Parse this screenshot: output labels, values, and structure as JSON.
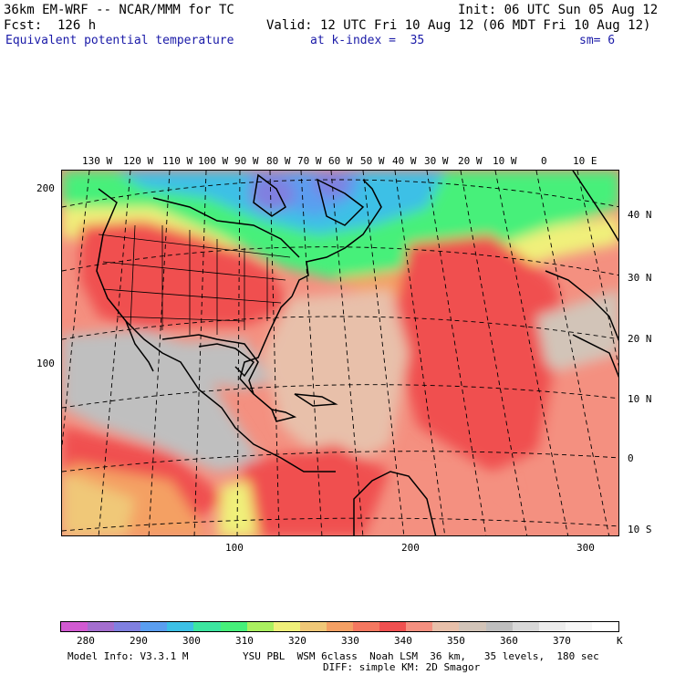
{
  "header": {
    "model": "36km EM-WRF -- NCAR/MMM for TC",
    "init": "Init: 06 UTC Sun 05 Aug 12",
    "fcst": "Fcst:  126 h",
    "valid": "Valid: 12 UTC Fri 10 Aug 12 (06 MDT Fri 10 Aug 12)",
    "field": "Equivalent potential temperature",
    "level": "at k-index =  35",
    "smoothing": "sm= 6"
  },
  "map": {
    "lon_labels": [
      "130 W",
      "120 W",
      "110 W",
      "100 W",
      "90 W",
      "80 W",
      "70 W",
      "60 W",
      "50 W",
      "40 W",
      "30 W",
      "20 W",
      "10 W",
      "0",
      "10 E"
    ],
    "lat_labels": [
      "40 N",
      "30 N",
      "20 N",
      "10 N",
      "0",
      "10 S"
    ],
    "left_grid_labels": [
      "200",
      "100"
    ],
    "bottom_grid_labels": [
      "100",
      "200",
      "300"
    ]
  },
  "colorbar": {
    "colors": [
      "#d25ad2",
      "#a46ecf",
      "#8080e0",
      "#5a9ef0",
      "#3cc0e6",
      "#3ce6a0",
      "#46f07a",
      "#aaf060",
      "#f0f07a",
      "#f0c878",
      "#f4a064",
      "#f47860",
      "#f05050",
      "#f49080",
      "#e8c0aa",
      "#d2c4b8",
      "#bfbfbf",
      "#d8d8d8",
      "#ececec",
      "#f6f6f6",
      "#ffffff"
    ],
    "labels": [
      "280",
      "290",
      "300",
      "310",
      "320",
      "330",
      "340",
      "350",
      "360",
      "370"
    ],
    "unit": "K"
  },
  "footer": {
    "model_info": "Model Info: V3.3.1 M",
    "physics": "YSU PBL  WSM 6class  Noah LSM  36 km,   35 levels,  180 sec",
    "diffusion": "DIFF: simple KM: 2D Smagor"
  }
}
